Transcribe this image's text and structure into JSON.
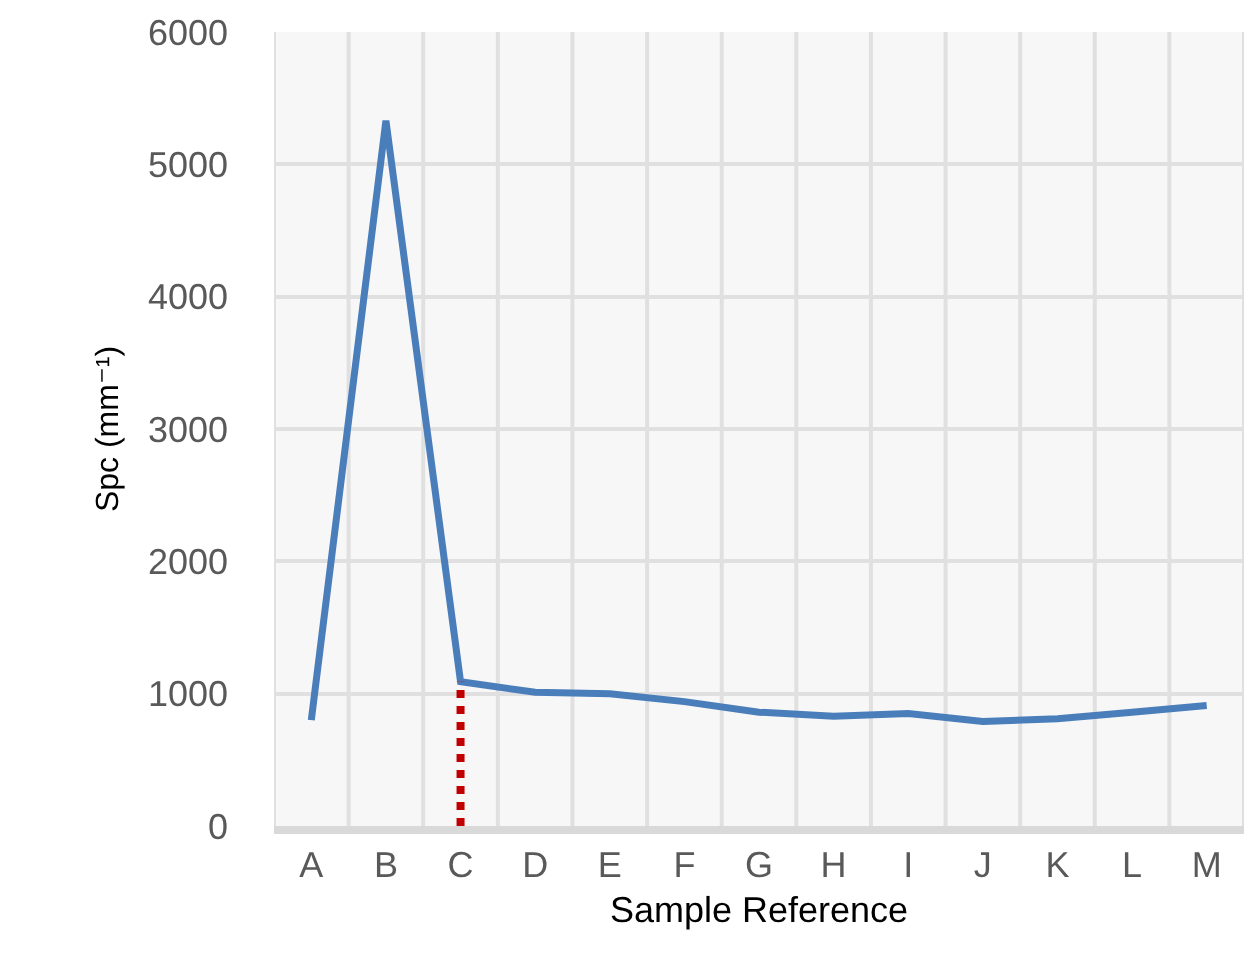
{
  "chart_data": {
    "type": "line",
    "xlabel": "Sample Reference",
    "ylabel": "Spc (mm⁻¹)",
    "categories": [
      "A",
      "B",
      "C",
      "D",
      "E",
      "F",
      "G",
      "H",
      "I",
      "J",
      "K",
      "L",
      "M"
    ],
    "series": [
      {
        "color": "#4a7ebb",
        "values": [
          800,
          5330,
          1090,
          1010,
          1000,
          940,
          860,
          830,
          850,
          790,
          810,
          860,
          910
        ]
      }
    ],
    "ylim": [
      0,
      6000
    ],
    "yticks": [
      0,
      1000,
      2000,
      3000,
      4000,
      5000,
      6000
    ],
    "ref_lines": [
      {
        "axis": "x",
        "value": "C",
        "color": "#c00000",
        "line_style": "dotted"
      }
    ],
    "grid": true,
    "marker": "none",
    "line_style": "solid"
  }
}
